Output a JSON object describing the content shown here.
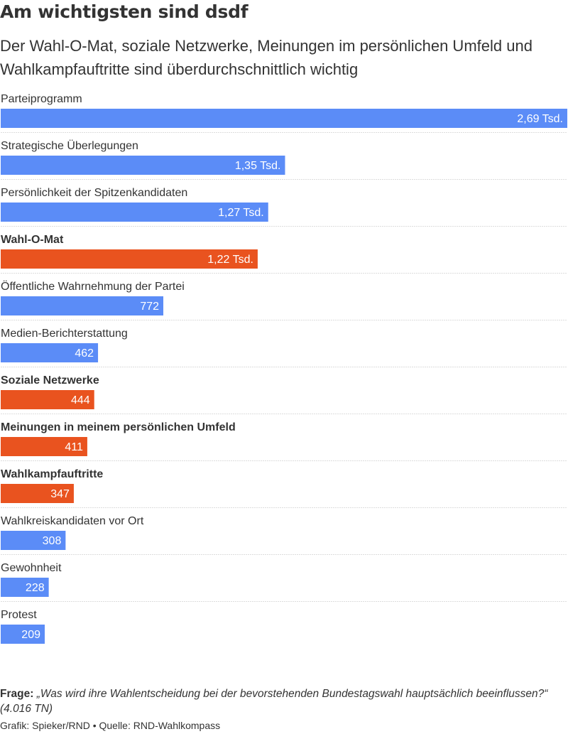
{
  "header": {
    "title": "Am wichtigsten sind dsdf",
    "subtitle": "Der Wahl-O-Mat, soziale Netzwerke, Meinungen im persönlichen Umfeld und Wahlkampfauftritte sind überdurchschnittlich wichtig"
  },
  "colors": {
    "default_bar": "#5b8cf7",
    "highlight_bar": "#e9531f",
    "separator": "#dddddd",
    "text": "#333333",
    "bar_label": "#ffffff"
  },
  "chart_data": {
    "type": "bar",
    "orientation": "horizontal",
    "categories": [
      "Parteiprogramm",
      "Strategische Überlegungen",
      "Persönlichkeit der Spitzenkandidaten",
      "Wahl-O-Mat",
      "Öffentliche Wahrnehmung der Partei",
      "Medien-Berichterstattung",
      "Soziale Netzwerke",
      "Meinungen in meinem persönlichen Umfeld",
      "Wahlkampfauftritte",
      "Wahlkreiskandidaten vor Ort",
      "Gewohnheit",
      "Protest"
    ],
    "values": [
      2690,
      1350,
      1270,
      1220,
      772,
      462,
      444,
      411,
      347,
      308,
      228,
      209
    ],
    "value_labels": [
      "2,69 Tsd.",
      "1,35 Tsd.",
      "1,27 Tsd.",
      "1,22 Tsd.",
      "772",
      "462",
      "444",
      "411",
      "347",
      "308",
      "228",
      "209"
    ],
    "highlighted": [
      false,
      false,
      false,
      true,
      false,
      false,
      true,
      true,
      true,
      false,
      false,
      false
    ],
    "xlim": [
      0,
      2690
    ],
    "grid": false,
    "legend": "none"
  },
  "footer": {
    "question_label": "Frage:",
    "question_text": "„Was wird ihre Wahlentscheidung bei der bevorstehenden Bundestagswahl hauptsächlich beeinflussen?“ (4.016 TN)",
    "credit": "Grafik: Spieker/RND • Quelle: RND-Wahlkompass"
  }
}
